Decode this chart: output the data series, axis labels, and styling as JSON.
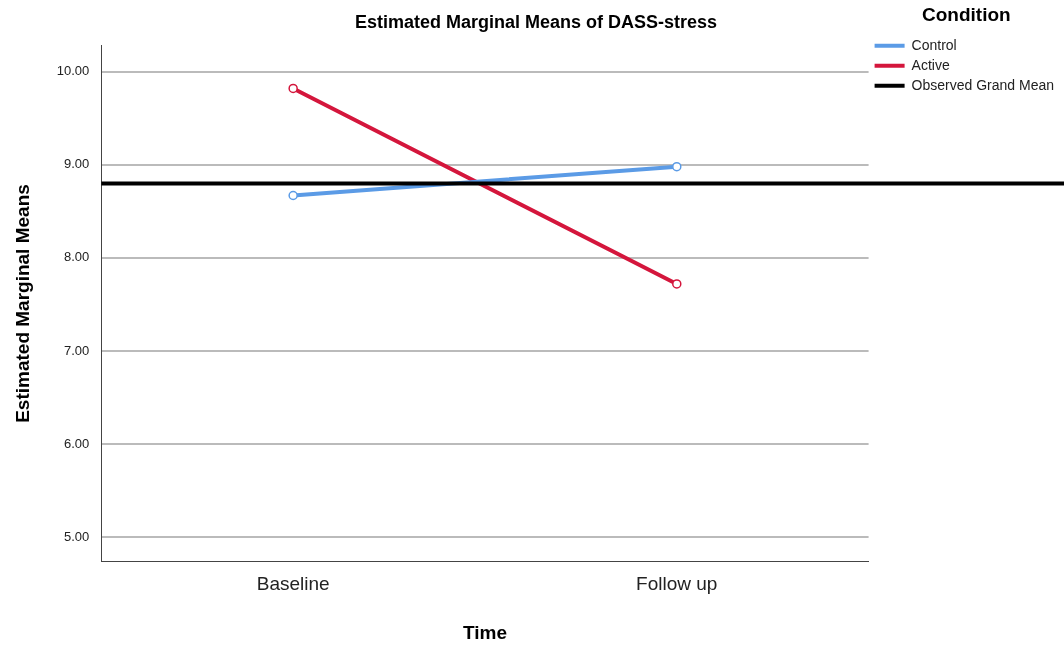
{
  "chart_data": {
    "type": "line",
    "title": "Estimated Marginal Means of DASS-stress",
    "xlabel": "Time",
    "ylabel": "Estimated Marginal Means",
    "legend_title": "Condition",
    "categories": [
      "Baseline",
      "Follow up"
    ],
    "series": [
      {
        "name": "Control",
        "color": "#5b9be6",
        "values": [
          8.67,
          8.98
        ]
      },
      {
        "name": "Active",
        "color": "#d4163c",
        "values": [
          9.82,
          7.72
        ]
      }
    ],
    "ylim": [
      4.74,
      10.28
    ],
    "yticks": [
      {
        "value": 5,
        "label": "5.00"
      },
      {
        "value": 6,
        "label": "6.00"
      },
      {
        "value": 7,
        "label": "7.00"
      },
      {
        "value": 8,
        "label": "8.00"
      },
      {
        "value": 9,
        "label": "9.00"
      },
      {
        "value": 10,
        "label": "10.00"
      }
    ],
    "ref_lines": [
      {
        "axis": "y",
        "value": 8.8,
        "label": "Observed Grand Mean",
        "color": "#000000"
      }
    ],
    "grid": "y",
    "legend": "top right",
    "marker": "circle",
    "line_style": "solid"
  }
}
